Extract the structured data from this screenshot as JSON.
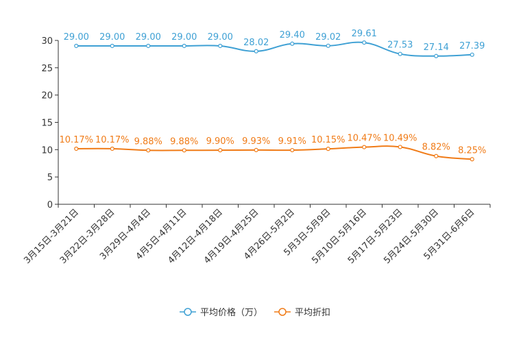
{
  "chart_data": {
    "type": "line",
    "title": "",
    "xlabel": "",
    "ylabel": "",
    "ylim": [
      0,
      30
    ],
    "yticks": [
      0,
      5,
      10,
      15,
      20,
      25,
      30
    ],
    "grid": false,
    "legend_position": "bottom-center",
    "categories": [
      "3月15日-3月21日",
      "3月22日-3月28日",
      "3月29日-4月4日",
      "4月5日-4月11日",
      "4月12日-4月18日",
      "4月19日-4月25日",
      "4月26日-5月2日",
      "5月3日-5月9日",
      "5月10日-5月16日",
      "5月17日-5月23日",
      "5月24日-5月30日",
      "5月31日-6月6日"
    ],
    "series": [
      {
        "name": "平均价格（万）",
        "color": "#3ea0d4",
        "values": [
          29.0,
          29.0,
          29.0,
          29.0,
          29.0,
          28.02,
          29.4,
          29.02,
          29.61,
          27.53,
          27.14,
          27.39
        ],
        "labels": [
          "29.00",
          "29.00",
          "29.00",
          "29.00",
          "29.00",
          "28.02",
          "29.40",
          "29.02",
          "29.61",
          "27.53",
          "27.14",
          "27.39"
        ]
      },
      {
        "name": "平均折扣",
        "color": "#f07b17",
        "values": [
          10.17,
          10.17,
          9.88,
          9.88,
          9.9,
          9.93,
          9.91,
          10.15,
          10.47,
          10.49,
          8.82,
          8.25
        ],
        "labels": [
          "10.17%",
          "10.17%",
          "9.88%",
          "9.88%",
          "9.90%",
          "9.93%",
          "9.91%",
          "10.15%",
          "10.47%",
          "10.49%",
          "8.82%",
          "8.25%"
        ]
      }
    ]
  }
}
